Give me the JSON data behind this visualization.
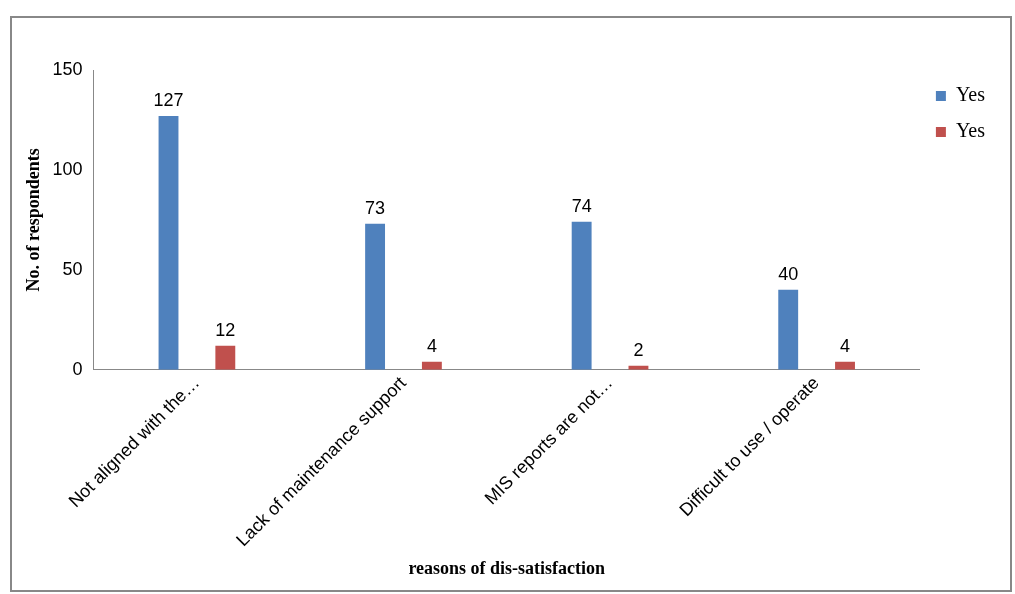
{
  "chart_data": {
    "type": "bar",
    "xlabel": "reasons of dis-satisfaction",
    "ylabel": "No. of respondents",
    "categories": [
      "Not aligned with the…",
      "Lack of maintenance support",
      "MIS reports are not…",
      "Difficult to use / operate"
    ],
    "series": [
      {
        "name": "Yes",
        "color": "#4f81bd",
        "values": [
          127,
          73,
          74,
          40
        ]
      },
      {
        "name": "Yes",
        "color": "#c0504d",
        "values": [
          12,
          4,
          2,
          4
        ]
      }
    ],
    "ylim": [
      0,
      150
    ],
    "yticks": [
      0,
      50,
      100,
      150
    ],
    "grid": false,
    "legend": "top right",
    "data_labels": true
  }
}
